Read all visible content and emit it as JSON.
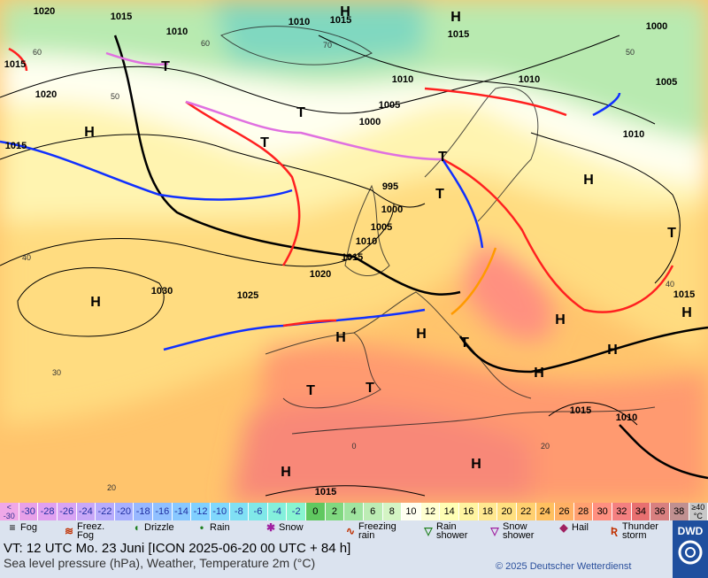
{
  "map": {
    "isobar_labels": [
      "1020",
      "1015",
      "1010",
      "1015",
      "1015",
      "1000",
      "1010",
      "1015",
      "1020",
      "1010",
      "1010",
      "1005",
      "1005",
      "1000",
      "1010",
      "995",
      "1000",
      "1005",
      "1010",
      "1015",
      "1020",
      "1030",
      "1025",
      "1015",
      "1015",
      "1015",
      "1010",
      "1015"
    ],
    "high_labels": [
      "H",
      "H",
      "H",
      "H",
      "H",
      "H",
      "H",
      "H",
      "H",
      "H",
      "H",
      "H",
      "H"
    ],
    "low_labels": [
      "T",
      "T",
      "T",
      "T",
      "T",
      "T",
      "T",
      "T",
      "T"
    ],
    "grid_labels": [
      "60",
      "50",
      "40",
      "30",
      "20",
      "70",
      "0",
      "20",
      "60",
      "50",
      "40"
    ]
  },
  "temperature_scale": {
    "below": [
      "<",
      "-30"
    ],
    "above": [
      "≥40",
      "°C"
    ],
    "steps": [
      {
        "value": -30,
        "color": "#e8a0e8"
      },
      {
        "value": -28,
        "color": "#e0a0f0"
      },
      {
        "value": -26,
        "color": "#d8a4f4"
      },
      {
        "value": -24,
        "color": "#c8a8f8"
      },
      {
        "value": -22,
        "color": "#b8acfc"
      },
      {
        "value": -20,
        "color": "#a8b0ff"
      },
      {
        "value": -18,
        "color": "#98b8ff"
      },
      {
        "value": -16,
        "color": "#90c0ff"
      },
      {
        "value": -14,
        "color": "#88c8ff"
      },
      {
        "value": -12,
        "color": "#80d0ff"
      },
      {
        "value": -10,
        "color": "#80d8fc"
      },
      {
        "value": -8,
        "color": "#80e0f4"
      },
      {
        "value": -6,
        "color": "#80e8e8"
      },
      {
        "value": -4,
        "color": "#84f0dc"
      },
      {
        "value": -2,
        "color": "#88f4d0"
      },
      {
        "value": 0,
        "color": "#60c860"
      },
      {
        "value": 2,
        "color": "#80d880"
      },
      {
        "value": 4,
        "color": "#a0e4a0"
      },
      {
        "value": 6,
        "color": "#bcecb4"
      },
      {
        "value": 8,
        "color": "#d4f4c4"
      },
      {
        "value": 10,
        "color": "#fffff0"
      },
      {
        "value": 12,
        "color": "#ffffd0"
      },
      {
        "value": 14,
        "color": "#ffffb4"
      },
      {
        "value": 16,
        "color": "#fff4a0"
      },
      {
        "value": 18,
        "color": "#ffe890"
      },
      {
        "value": 20,
        "color": "#ffe080"
      },
      {
        "value": 22,
        "color": "#ffd070"
      },
      {
        "value": 24,
        "color": "#ffc060"
      },
      {
        "value": 26,
        "color": "#ffb064"
      },
      {
        "value": 28,
        "color": "#ffa070"
      },
      {
        "value": 30,
        "color": "#ff9080"
      },
      {
        "value": 32,
        "color": "#f48080"
      },
      {
        "value": 34,
        "color": "#e87070"
      },
      {
        "value": 36,
        "color": "#d88080"
      },
      {
        "value": 38,
        "color": "#c09090"
      }
    ]
  },
  "weather_legend": [
    "Fog",
    "Freez. Fog",
    "Drizzle",
    "Rain",
    "Snow",
    "Freezing rain",
    "Rain shower",
    "Snow shower",
    "Hail",
    "Thunder storm"
  ],
  "footer": {
    "valid_time": "VT: 12 UTC Mo.  23 Juni [ICON 2025-06-20  00 UTC + 84 h]",
    "product": "Sea level pressure (hPa), Weather, Temperature 2m (°C)",
    "copyright": "© 2025 Deutscher Wetterdienst",
    "logo": "DWD"
  }
}
